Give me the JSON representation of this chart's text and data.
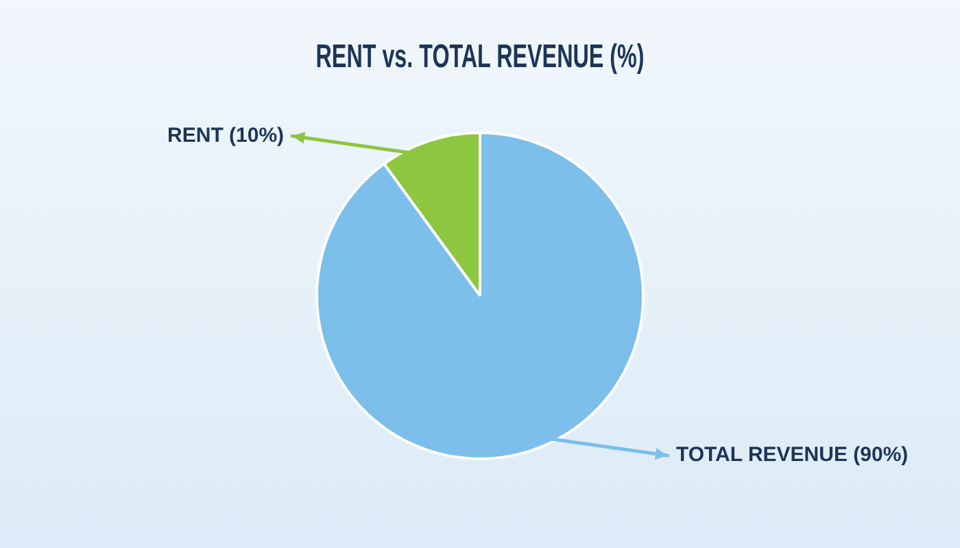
{
  "chart_data": {
    "type": "pie",
    "title": "RENT vs. TOTAL REVENUE (%)",
    "categories": [
      "RENT",
      "TOTAL REVENUE"
    ],
    "values": [
      10,
      90
    ],
    "value_labels": [
      "(10%)",
      "(90%)"
    ],
    "colors": [
      "#8dc63f",
      "#7bbfea"
    ]
  }
}
